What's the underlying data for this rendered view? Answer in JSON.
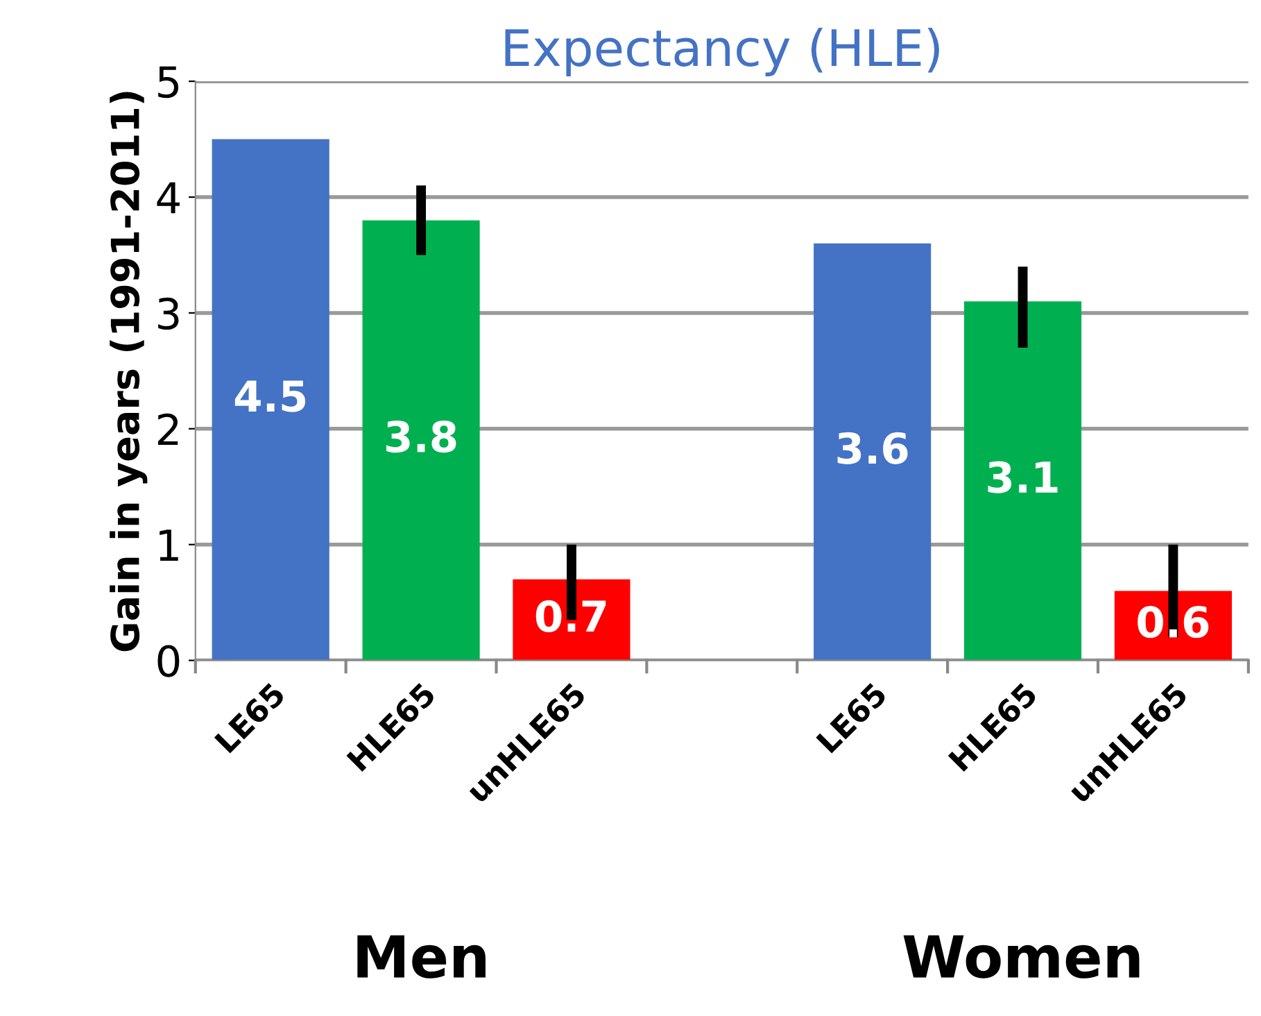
{
  "chart_data": {
    "type": "bar",
    "title": "Expectancy (HLE)",
    "ylabel": "Gain in years (1991-2011)",
    "categories": [
      "LE65",
      "HLE65",
      "unHLE65",
      null,
      "LE65",
      "HLE65",
      "unHLE65"
    ],
    "values": [
      4.5,
      3.8,
      0.7,
      null,
      3.6,
      3.1,
      0.6
    ],
    "colors": [
      "#4472c4",
      "#00b050",
      "#ff0000",
      "#ffffff",
      "#4472c4",
      "#00b050",
      "#ff0000"
    ],
    "errors": [
      null,
      [
        3.5,
        4.1
      ],
      [
        0.35,
        1.0
      ],
      null,
      null,
      [
        2.7,
        3.4
      ],
      [
        0.2,
        1.0
      ]
    ],
    "ylim": [
      0,
      5
    ],
    "yticks": [
      0,
      1,
      2,
      3,
      4,
      5
    ],
    "grid": "y",
    "data_labels": true,
    "annotations": [
      "Men",
      "Women"
    ]
  }
}
